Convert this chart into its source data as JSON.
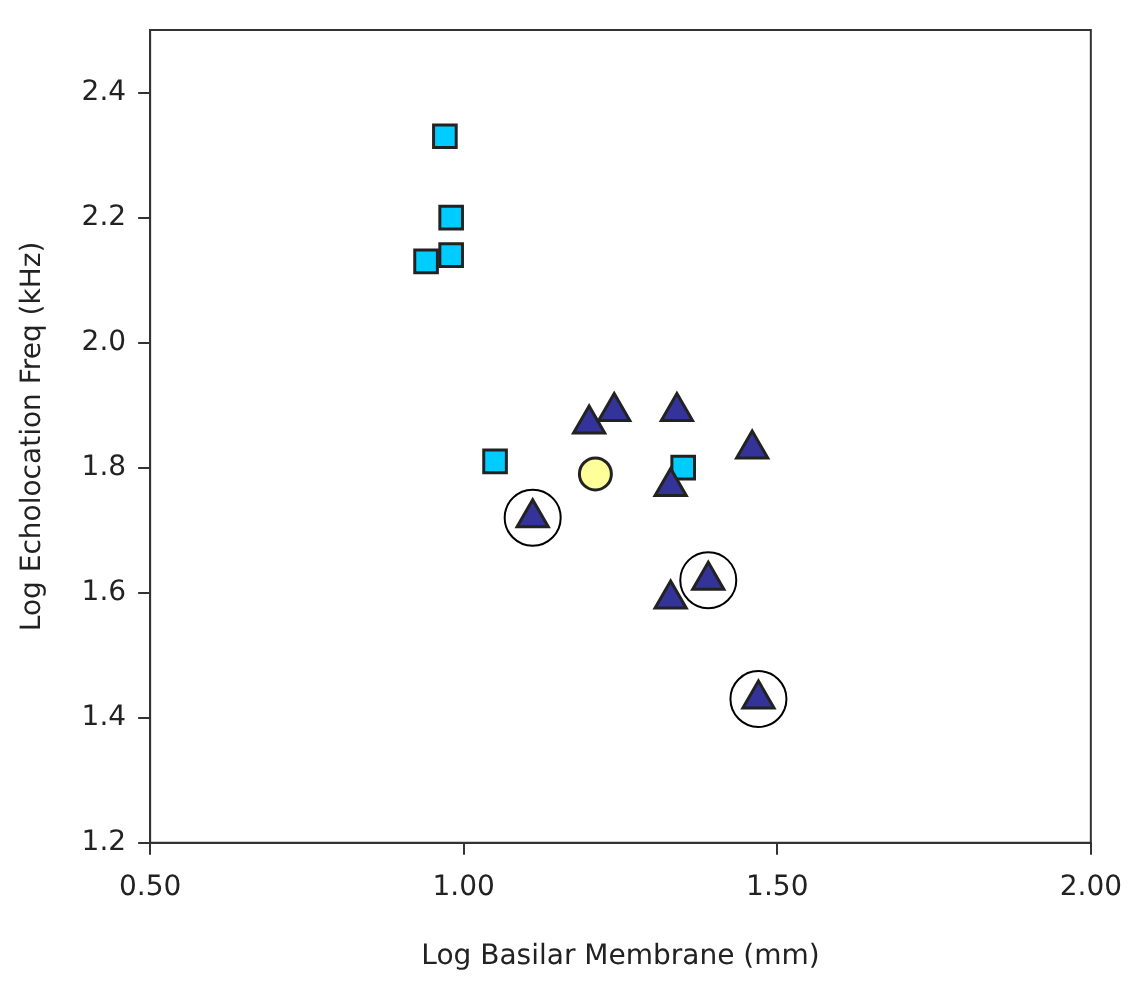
{
  "chart_data": {
    "type": "scatter",
    "xlabel": "Log Basilar Membrane (mm)",
    "ylabel": "Log Echolocation Freq (kHz)",
    "xlim": [
      0.5,
      2.0
    ],
    "xticks": [
      {
        "value": 0.5,
        "label": "0.50"
      },
      {
        "value": 1.0,
        "label": "1.00"
      },
      {
        "value": 1.5,
        "label": "1.50"
      },
      {
        "value": 2.0,
        "label": "2.00"
      }
    ],
    "ylim": [
      1.2,
      2.5
    ],
    "yticks": [
      {
        "value": 1.2,
        "label": "1.2"
      },
      {
        "value": 1.4,
        "label": "1.4"
      },
      {
        "value": 1.6,
        "label": "1.6"
      },
      {
        "value": 1.8,
        "label": "1.8"
      },
      {
        "value": 2.0,
        "label": "2.0"
      },
      {
        "value": 2.2,
        "label": "2.2"
      },
      {
        "value": 2.4,
        "label": "2.4"
      }
    ],
    "grid": false,
    "legend": false,
    "series": [
      {
        "color": "#00ccff",
        "marker": "square",
        "x": [
          0.97,
          0.98,
          0.98,
          0.94,
          1.05,
          1.35
        ],
        "values": [
          2.33,
          2.2,
          2.14,
          2.13,
          1.81,
          1.8
        ]
      },
      {
        "color": "#ffff99",
        "marker": "circle",
        "x": [
          1.21
        ],
        "values": [
          1.79
        ]
      },
      {
        "color": "#333399",
        "marker": "triangle",
        "x": [
          1.2,
          1.24,
          1.34,
          1.46,
          1.33,
          1.11,
          1.33,
          1.39,
          1.47
        ],
        "values": [
          1.87,
          1.89,
          1.89,
          1.83,
          1.77,
          1.72,
          1.59,
          1.62,
          1.43
        ]
      },
      {
        "color": "#000000",
        "marker": "circle",
        "x": [
          1.11,
          1.39,
          1.47
        ],
        "values": [
          1.72,
          1.62,
          1.43
        ]
      }
    ]
  }
}
